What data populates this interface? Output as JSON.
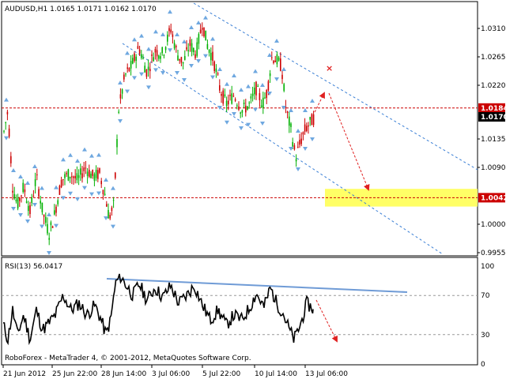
{
  "main": {
    "header": "AUDUSD,H1  1.0165 1.0171 1.0162 1.0170",
    "price_min": 0.9945,
    "price_max": 1.035,
    "y_ticks": [
      "1.0310",
      "1.0265",
      "1.0220",
      "1.0135",
      "1.0090",
      "1.0000",
      "0.9955"
    ],
    "y_tick_values": [
      1.031,
      1.0265,
      1.022,
      1.0135,
      1.009,
      1.0,
      0.9955
    ],
    "resistance": {
      "value": 1.0184,
      "label": "1.0184"
    },
    "current": {
      "value": 1.017,
      "label": "1.0170"
    },
    "support": {
      "value": 1.0042,
      "label": "1.0042"
    },
    "target_zone": {
      "from": 1.0028,
      "to": 1.0056
    },
    "colors": {
      "bull": "#00b000",
      "bear": "#cc0000",
      "level": "#cc0000",
      "channel": "#3a7fd5",
      "fractal": "#6fa8e0",
      "arrow": "#e02020",
      "zone": "#ffff66"
    }
  },
  "rsi": {
    "header": "RSI(13) 56.0417",
    "ticks": [
      "100",
      "70",
      "30",
      "0"
    ],
    "tick_values": [
      100,
      70,
      30,
      0
    ],
    "upper_level": 70,
    "lower_level": 30,
    "last_value": 56.0417,
    "line_color": "#000000",
    "trendline_color": "#6f9bd6"
  },
  "x_axis": {
    "labels": [
      "21 Jun 2012",
      "25 Jun 22:00",
      "28 Jun 14:00",
      "3 Jul 06:00",
      "5 Jul 22:00",
      "10 Jul 14:00",
      "13 Jul 06:00"
    ]
  },
  "watermark": "RoboForex - MetaTrader 4, © 2001-2012, MetaQuotes Software Corp."
}
